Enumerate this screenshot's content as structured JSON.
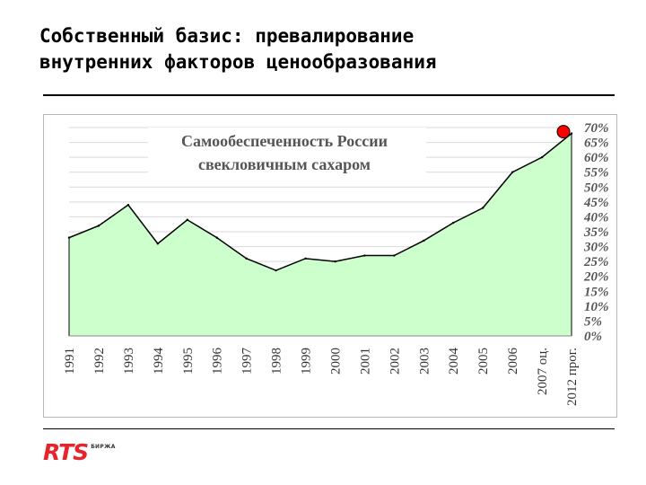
{
  "slide": {
    "title_lines": [
      "Собственный базис: превалирование",
      "внутренних факторов ценообразования"
    ]
  },
  "logo": {
    "text": "RTS",
    "sub": "БИРЖА"
  },
  "chart_data": {
    "type": "area",
    "title_lines": [
      "Самообеспеченность России",
      "свекловичным сахаром"
    ],
    "categories": [
      "1991",
      "1992",
      "1993",
      "1994",
      "1995",
      "1996",
      "1997",
      "1998",
      "1999",
      "2000",
      "2001",
      "2002",
      "2003",
      "2004",
      "2005",
      "2006",
      "2007 оц.",
      "2012 прог."
    ],
    "values": [
      33,
      37,
      44,
      31,
      39,
      33,
      26,
      22,
      26,
      25,
      27,
      27,
      32,
      38,
      43,
      55,
      60,
      68
    ],
    "highlight_index": 17,
    "ylim": [
      0,
      70
    ],
    "yticks": [
      "0%",
      "5%",
      "10%",
      "15%",
      "20%",
      "25%",
      "30%",
      "35%",
      "40%",
      "45%",
      "50%",
      "55%",
      "60%",
      "65%",
      "70%"
    ],
    "ytick_values": [
      0,
      5,
      10,
      15,
      20,
      25,
      30,
      35,
      40,
      45,
      50,
      55,
      60,
      65,
      70
    ],
    "y_axis": "right",
    "grid": true,
    "fill_color": "#ccffcc",
    "line_color": "#000000",
    "highlight_color": "#ff0000"
  }
}
